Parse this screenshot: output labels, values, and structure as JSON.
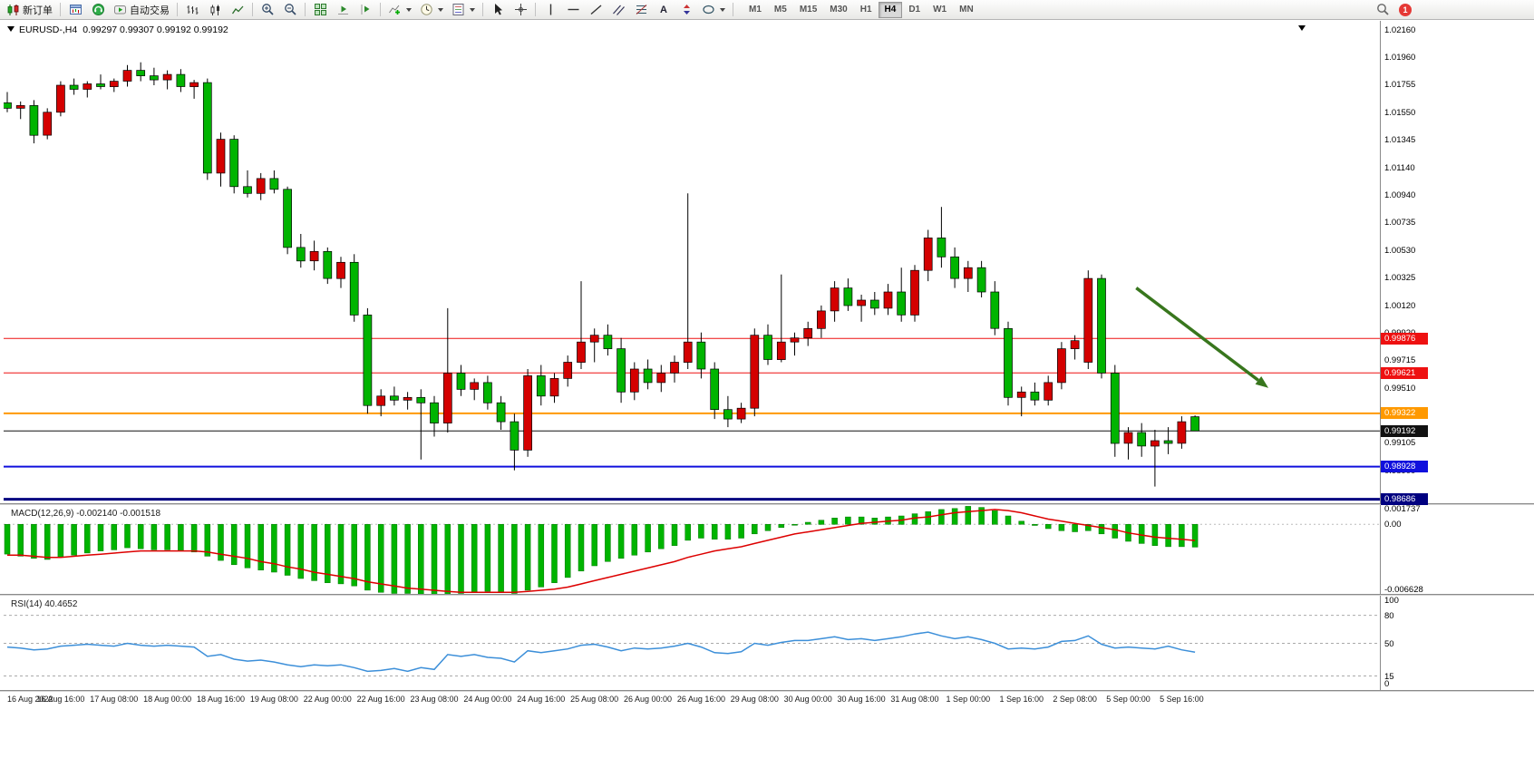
{
  "toolbar": {
    "new_order_label": "新订单",
    "autotrading_label": "自动交易",
    "text_tool_glyph": "A",
    "timeframes": [
      "M1",
      "M5",
      "M15",
      "M30",
      "H1",
      "H4",
      "D1",
      "W1",
      "MN"
    ],
    "active_timeframe": "H4",
    "notification_count": "1"
  },
  "chart": {
    "symbol_label": "EURUSD-,H4",
    "ohlc_label": "0.99297 0.99307 0.99192 0.99192",
    "price_axis": [
      "1.02160",
      "1.01960",
      "1.01755",
      "1.01550",
      "1.01345",
      "1.01140",
      "1.00940",
      "1.00735",
      "1.00530",
      "1.00325",
      "1.00120",
      "0.99920",
      "0.99715",
      "0.99510",
      "0.99305",
      "0.99105",
      "0.98900"
    ],
    "time_axis": [
      "16 Aug 2022",
      "16 Aug 16:00",
      "17 Aug 08:00",
      "18 Aug 00:00",
      "18 Aug 16:00",
      "19 Aug 08:00",
      "22 Aug 00:00",
      "22 Aug 16:00",
      "23 Aug 08:00",
      "24 Aug 00:00",
      "24 Aug 16:00",
      "25 Aug 08:00",
      "26 Aug 00:00",
      "26 Aug 16:00",
      "29 Aug 08:00",
      "30 Aug 00:00",
      "30 Aug 16:00",
      "31 Aug 08:00",
      "1 Sep 00:00",
      "1 Sep 16:00",
      "2 Sep 08:00",
      "5 Sep 00:00",
      "5 Sep 16:00"
    ]
  },
  "macd": {
    "label": "MACD(12,26,9) -0.002140 -0.001518",
    "scale_labels": [
      {
        "text": "0.001737",
        "value": 0.001737
      },
      {
        "text": "0.00",
        "value": 0
      },
      {
        "text": "-0.006628",
        "value": -0.006628
      }
    ]
  },
  "rsi": {
    "label": "RSI(14) 40.4652",
    "scale_labels": [
      {
        "text": "100",
        "value": 100
      },
      {
        "text": "80",
        "value": 80
      },
      {
        "text": "50",
        "value": 50
      },
      {
        "text": "15",
        "value": 15
      },
      {
        "text": "0",
        "value": 0
      }
    ]
  },
  "chart_data": {
    "type": "candlestick",
    "symbol": "EURUSD-",
    "timeframe": "H4",
    "up_color": "#d40000",
    "down_color": "#00b400",
    "price_range": [
      0.9865,
      1.0222
    ],
    "candles": [
      [
        1.0162,
        1.017,
        1.0155,
        1.0158
      ],
      [
        1.0158,
        1.0163,
        1.015,
        1.016
      ],
      [
        1.016,
        1.0164,
        1.0132,
        1.0138
      ],
      [
        1.0138,
        1.0158,
        1.0135,
        1.0155
      ],
      [
        1.0155,
        1.0178,
        1.0152,
        1.0175
      ],
      [
        1.0175,
        1.018,
        1.0168,
        1.0172
      ],
      [
        1.0172,
        1.0178,
        1.0166,
        1.0176
      ],
      [
        1.0176,
        1.0183,
        1.0172,
        1.0174
      ],
      [
        1.0174,
        1.018,
        1.017,
        1.0178
      ],
      [
        1.0178,
        1.019,
        1.0174,
        1.0186
      ],
      [
        1.0186,
        1.0192,
        1.0178,
        1.0182
      ],
      [
        1.0182,
        1.0188,
        1.0175,
        1.0179
      ],
      [
        1.0179,
        1.0186,
        1.0172,
        1.0183
      ],
      [
        1.0183,
        1.0187,
        1.017,
        1.0174
      ],
      [
        1.0174,
        1.0179,
        1.0165,
        1.0177
      ],
      [
        1.0177,
        1.018,
        1.0105,
        1.011
      ],
      [
        1.011,
        1.014,
        1.01,
        1.0135
      ],
      [
        1.0135,
        1.0138,
        1.0095,
        1.01
      ],
      [
        1.01,
        1.0112,
        1.0092,
        1.0095
      ],
      [
        1.0095,
        1.011,
        1.009,
        1.0106
      ],
      [
        1.0106,
        1.0112,
        1.0095,
        1.0098
      ],
      [
        1.0098,
        1.01,
        1.005,
        1.0055
      ],
      [
        1.0055,
        1.0065,
        1.004,
        1.0045
      ],
      [
        1.0045,
        1.006,
        1.0038,
        1.0052
      ],
      [
        1.0052,
        1.0055,
        1.0028,
        1.0032
      ],
      [
        1.0032,
        1.0048,
        1.0025,
        1.0044
      ],
      [
        1.0044,
        1.005,
        1.0,
        1.0005
      ],
      [
        1.0005,
        1.001,
        0.9932,
        0.9938
      ],
      [
        0.9938,
        0.995,
        0.993,
        0.9945
      ],
      [
        0.9945,
        0.9952,
        0.9938,
        0.9942
      ],
      [
        0.9942,
        0.9948,
        0.9935,
        0.9944
      ],
      [
        0.9944,
        0.995,
        0.9898,
        0.994
      ],
      [
        0.994,
        0.9945,
        0.9915,
        0.9925
      ],
      [
        0.9925,
        1.001,
        0.9918,
        0.9962
      ],
      [
        0.9962,
        0.9968,
        0.9945,
        0.995
      ],
      [
        0.995,
        0.9958,
        0.9942,
        0.9955
      ],
      [
        0.9955,
        0.996,
        0.9935,
        0.994
      ],
      [
        0.994,
        0.9945,
        0.992,
        0.9926
      ],
      [
        0.9926,
        0.9932,
        0.989,
        0.9905
      ],
      [
        0.9905,
        0.9965,
        0.99,
        0.996
      ],
      [
        0.996,
        0.9968,
        0.9938,
        0.9945
      ],
      [
        0.9945,
        0.9962,
        0.994,
        0.9958
      ],
      [
        0.9958,
        0.9975,
        0.9952,
        0.997
      ],
      [
        0.997,
        1.003,
        0.9965,
        0.9985
      ],
      [
        0.9985,
        0.9995,
        0.997,
        0.999
      ],
      [
        0.999,
        0.9998,
        0.9975,
        0.998
      ],
      [
        0.998,
        0.9988,
        0.994,
        0.9948
      ],
      [
        0.9948,
        0.997,
        0.9942,
        0.9965
      ],
      [
        0.9965,
        0.9972,
        0.995,
        0.9955
      ],
      [
        0.9955,
        0.9968,
        0.9948,
        0.9962
      ],
      [
        0.9962,
        0.9975,
        0.9955,
        0.997
      ],
      [
        0.997,
        1.0095,
        0.9965,
        0.9985
      ],
      [
        0.9985,
        0.9992,
        0.9958,
        0.9965
      ],
      [
        0.9965,
        0.997,
        0.9928,
        0.9935
      ],
      [
        0.9935,
        0.9945,
        0.9922,
        0.9928
      ],
      [
        0.9928,
        0.994,
        0.9925,
        0.9936
      ],
      [
        0.9936,
        0.9995,
        0.993,
        0.999
      ],
      [
        0.999,
        0.9998,
        0.9968,
        0.9972
      ],
      [
        0.9972,
        1.0035,
        0.997,
        0.9985
      ],
      [
        0.9985,
        0.9992,
        0.9975,
        0.9988
      ],
      [
        0.9988,
        1.0,
        0.9982,
        0.9995
      ],
      [
        0.9995,
        1.0012,
        0.9988,
        1.0008
      ],
      [
        1.0008,
        1.003,
        1.0,
        1.0025
      ],
      [
        1.0025,
        1.0032,
        1.0008,
        1.0012
      ],
      [
        1.0012,
        1.002,
        1.0,
        1.0016
      ],
      [
        1.0016,
        1.0022,
        1.0005,
        1.001
      ],
      [
        1.001,
        1.0028,
        1.0005,
        1.0022
      ],
      [
        1.0022,
        1.004,
        1.0,
        1.0005
      ],
      [
        1.0005,
        1.0042,
        1.0,
        1.0038
      ],
      [
        1.0038,
        1.0068,
        1.003,
        1.0062
      ],
      [
        1.0062,
        1.0085,
        1.004,
        1.0048
      ],
      [
        1.0048,
        1.0055,
        1.0025,
        1.0032
      ],
      [
        1.0032,
        1.0045,
        1.0022,
        1.004
      ],
      [
        1.004,
        1.0045,
        1.0018,
        1.0022
      ],
      [
        1.0022,
        1.003,
        0.999,
        0.9995
      ],
      [
        0.9995,
        1.0,
        0.9938,
        0.9944
      ],
      [
        0.9944,
        0.9952,
        0.993,
        0.9948
      ],
      [
        0.9948,
        0.9955,
        0.9938,
        0.9942
      ],
      [
        0.9942,
        0.996,
        0.9938,
        0.9955
      ],
      [
        0.9955,
        0.9985,
        0.995,
        0.998
      ],
      [
        0.998,
        0.999,
        0.9972,
        0.9986
      ],
      [
        0.997,
        1.0038,
        0.9965,
        1.0032
      ],
      [
        1.0032,
        1.0035,
        0.9958,
        0.9962
      ],
      [
        0.9962,
        0.9968,
        0.99,
        0.991
      ],
      [
        0.991,
        0.9922,
        0.9898,
        0.9918
      ],
      [
        0.9918,
        0.9925,
        0.99,
        0.9908
      ],
      [
        0.9908,
        0.992,
        0.9878,
        0.9912
      ],
      [
        0.9912,
        0.9922,
        0.9902,
        0.991
      ],
      [
        0.991,
        0.993,
        0.9906,
        0.9926
      ],
      [
        0.99297,
        0.99307,
        0.99192,
        0.99192
      ]
    ],
    "hlines": [
      {
        "price": 0.99876,
        "label": "0.99876",
        "color": "#ee1111",
        "width": 1
      },
      {
        "price": 0.99621,
        "label": "0.99621",
        "color": "#ee1111",
        "width": 1
      },
      {
        "price": 0.99322,
        "label": "0.99322",
        "color": "#ff9900",
        "width": 2
      },
      {
        "price": 0.99192,
        "label": "0.99192",
        "color": "#111111",
        "width": 1
      },
      {
        "price": 0.98928,
        "label": "0.98928",
        "color": "#1010dd",
        "width": 2
      },
      {
        "price": 0.98686,
        "label": "0.98686",
        "color": "#000080",
        "width": 3
      }
    ],
    "annotation_arrow": {
      "color": "#38761d",
      "from": {
        "index": 84.6,
        "price": 1.0025
      },
      "to": {
        "index": 94.5,
        "price": 0.9951
      }
    },
    "macd": {
      "type": "bar+line",
      "scale": [
        -0.006628,
        0.001737
      ],
      "histogram": [
        -0.0028,
        -0.003,
        -0.0032,
        -0.0033,
        -0.0031,
        -0.0029,
        -0.0027,
        -0.0025,
        -0.0024,
        -0.0022,
        -0.0023,
        -0.0024,
        -0.0024,
        -0.0025,
        -0.0026,
        -0.003,
        -0.0034,
        -0.0038,
        -0.0041,
        -0.0043,
        -0.0045,
        -0.0048,
        -0.0051,
        -0.0053,
        -0.0055,
        -0.0056,
        -0.0058,
        -0.0062,
        -0.0064,
        -0.0065,
        -0.0065,
        -0.0066,
        -0.0066,
        -0.0066,
        -0.0065,
        -0.0064,
        -0.0063,
        -0.0064,
        -0.0065,
        -0.0062,
        -0.0059,
        -0.0055,
        -0.005,
        -0.0044,
        -0.0039,
        -0.0035,
        -0.0032,
        -0.0029,
        -0.0026,
        -0.0023,
        -0.002,
        -0.0015,
        -0.0013,
        -0.0014,
        -0.0014,
        -0.0013,
        -0.0009,
        -0.0006,
        -0.0003,
        0.0,
        0.0002,
        0.0004,
        0.0006,
        0.0007,
        0.0007,
        0.0006,
        0.0007,
        0.0008,
        0.001,
        0.0012,
        0.0014,
        0.0015,
        0.0017,
        0.0016,
        0.0013,
        0.0008,
        0.0003,
        -0.0001,
        -0.0004,
        -0.0006,
        -0.0007,
        -0.0006,
        -0.0009,
        -0.0013,
        -0.0016,
        -0.0018,
        -0.002,
        -0.0021,
        -0.0021,
        -0.00214
      ],
      "signal": [
        -0.0029,
        -0.0029,
        -0.003,
        -0.0031,
        -0.0031,
        -0.003,
        -0.0029,
        -0.0028,
        -0.0027,
        -0.0026,
        -0.0025,
        -0.0025,
        -0.0025,
        -0.0025,
        -0.0025,
        -0.0026,
        -0.0028,
        -0.003,
        -0.0032,
        -0.0035,
        -0.0037,
        -0.004,
        -0.0042,
        -0.0045,
        -0.0047,
        -0.0049,
        -0.0051,
        -0.0054,
        -0.0056,
        -0.0058,
        -0.006,
        -0.0061,
        -0.0062,
        -0.0063,
        -0.0064,
        -0.0064,
        -0.0064,
        -0.0064,
        -0.0064,
        -0.0063,
        -0.0062,
        -0.0061,
        -0.0059,
        -0.0056,
        -0.0053,
        -0.005,
        -0.0047,
        -0.0044,
        -0.0041,
        -0.0038,
        -0.0035,
        -0.0031,
        -0.0028,
        -0.0025,
        -0.0023,
        -0.0021,
        -0.0018,
        -0.0015,
        -0.0012,
        -0.0009,
        -0.0007,
        -0.0005,
        -0.0003,
        -0.0001,
        0.0001,
        0.0002,
        0.0003,
        0.0004,
        0.0006,
        0.0007,
        0.0009,
        0.0011,
        0.0012,
        0.0013,
        0.0014,
        0.0013,
        0.0011,
        0.0008,
        0.0005,
        0.0003,
        0.0001,
        -0.0001,
        -0.0003,
        -0.0005,
        -0.0008,
        -0.001,
        -0.0012,
        -0.0013,
        -0.0014,
        -0.001518
      ]
    },
    "rsi": {
      "type": "line",
      "scale": [
        0,
        100
      ],
      "levels": [
        80,
        50,
        15
      ],
      "values": [
        46,
        45,
        43,
        44,
        47,
        48,
        49,
        48,
        47,
        50,
        48,
        47,
        48,
        47,
        46,
        36,
        38,
        33,
        31,
        32,
        30,
        27,
        25,
        27,
        26,
        27,
        24,
        20,
        21,
        23,
        20,
        24,
        22,
        38,
        36,
        38,
        35,
        34,
        30,
        42,
        40,
        42,
        44,
        48,
        49,
        46,
        42,
        45,
        44,
        45,
        47,
        50,
        46,
        40,
        39,
        41,
        50,
        48,
        51,
        53,
        53,
        55,
        57,
        54,
        55,
        53,
        55,
        57,
        60,
        62,
        58,
        55,
        57,
        54,
        50,
        44,
        45,
        44,
        46,
        52,
        53,
        58,
        49,
        45,
        46,
        45,
        44,
        47,
        43,
        40.5
      ]
    }
  }
}
